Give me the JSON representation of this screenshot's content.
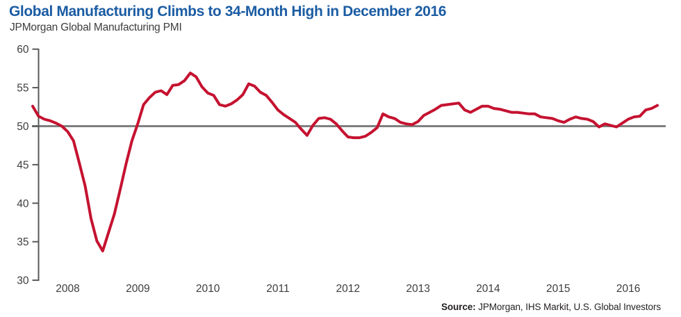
{
  "header": {
    "title": "Global Manufacturing Climbs to 34-Month High in December 2016",
    "subtitle": "JPMorgan Global Manufacturing PMI"
  },
  "footer": {
    "source_label": "Source:",
    "source_text": "JPMorgan, IHS Markit, U.S. Global Investors"
  },
  "colors": {
    "title_blue": "#1B5CA3",
    "line_red": "#C51230",
    "reference_gray": "#7F7F7F",
    "axis_gray": "#57585A",
    "tick_text": "#3C3D3F"
  },
  "chart_data": {
    "type": "line",
    "title": "Global Manufacturing Climbs to 34-Month High in December 2016",
    "subtitle": "JPMorgan Global Manufacturing PMI",
    "x_start_month": "2008-01",
    "x_end_month": "2016-12",
    "frequency": "monthly",
    "x_tick_labels": [
      "2008",
      "2009",
      "2010",
      "2011",
      "2012",
      "2013",
      "2014",
      "2015",
      "2016"
    ],
    "y_ticks": [
      30,
      35,
      40,
      45,
      50,
      55,
      60
    ],
    "ylim": [
      30,
      60
    ],
    "reference_line_y": 50,
    "grid": "off",
    "legend_position": "none",
    "series": [
      {
        "name": "JPMorgan Global Manufacturing PMI",
        "values": [
          52.6,
          51.3,
          50.9,
          50.7,
          50.4,
          50.0,
          49.3,
          48.1,
          45.2,
          42.2,
          38.0,
          35.1,
          33.8,
          36.2,
          38.6,
          41.8,
          45.1,
          48.1,
          50.3,
          52.8,
          53.7,
          54.4,
          54.6,
          54.1,
          55.3,
          55.4,
          55.9,
          56.9,
          56.4,
          55.1,
          54.3,
          54.0,
          52.8,
          52.6,
          52.9,
          53.4,
          54.1,
          55.5,
          55.2,
          54.4,
          54.0,
          53.1,
          52.1,
          51.5,
          51.0,
          50.5,
          49.6,
          48.8,
          50.1,
          51.0,
          51.1,
          50.9,
          50.3,
          49.4,
          48.6,
          48.5,
          48.5,
          48.7,
          49.2,
          49.8,
          51.6,
          51.2,
          51.0,
          50.5,
          50.3,
          50.2,
          50.6,
          51.4,
          51.8,
          52.2,
          52.7,
          52.8,
          52.9,
          53.0,
          52.1,
          51.8,
          52.2,
          52.6,
          52.6,
          52.3,
          52.2,
          52.0,
          51.8,
          51.8,
          51.7,
          51.6,
          51.6,
          51.2,
          51.1,
          51.0,
          50.7,
          50.5,
          50.9,
          51.2,
          51.0,
          50.9,
          50.6,
          49.9,
          50.3,
          50.1,
          49.9,
          50.4,
          50.9,
          51.2,
          51.3,
          52.1,
          52.3,
          52.7
        ]
      }
    ]
  }
}
